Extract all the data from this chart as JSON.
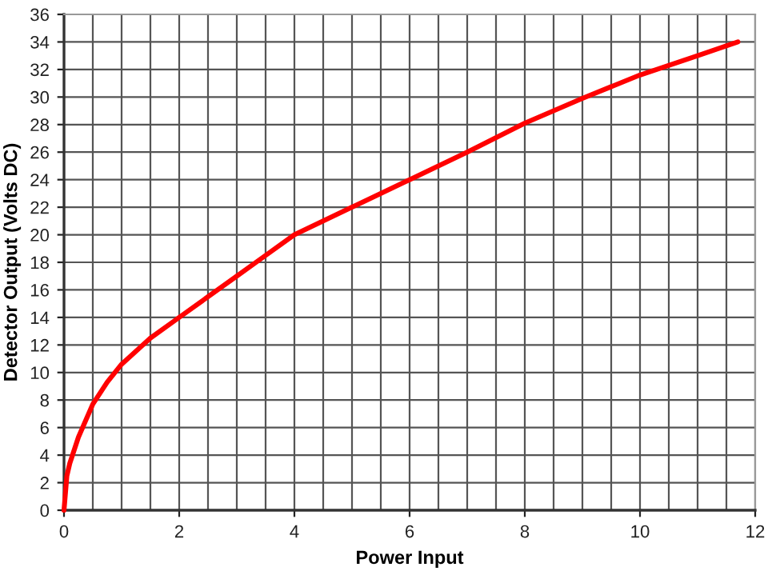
{
  "chart_data": {
    "type": "line",
    "xlabel": "Power Input",
    "ylabel": "Detector Output (Volts DC)",
    "x": [
      0,
      0.05,
      0.1,
      0.25,
      0.5,
      0.75,
      1,
      1.5,
      2,
      2.5,
      3,
      3.5,
      4,
      5,
      6,
      7,
      8,
      9,
      10,
      11,
      11.7
    ],
    "series": [
      {
        "color": "#ff0000",
        "values": [
          0,
          2.5,
          3.4,
          5.3,
          7.7,
          9.3,
          10.6,
          12.5,
          14.0,
          15.5,
          17.0,
          18.5,
          20.0,
          22.0,
          24.0,
          26.0,
          28.1,
          29.9,
          31.6,
          33.0,
          34.0
        ]
      }
    ],
    "xlim": [
      0,
      12
    ],
    "xticks": [
      0,
      {
        "value": 0.5,
        "label": null
      },
      {
        "value": 1,
        "label": null
      },
      {
        "value": 1.5,
        "label": null
      },
      2,
      {
        "value": 2.5,
        "label": null
      },
      {
        "value": 3,
        "label": null
      },
      {
        "value": 3.5,
        "label": null
      },
      4,
      {
        "value": 4.5,
        "label": null
      },
      {
        "value": 5,
        "label": null
      },
      {
        "value": 5.5,
        "label": null
      },
      6,
      {
        "value": 6.5,
        "label": null
      },
      {
        "value": 7,
        "label": null
      },
      {
        "value": 7.5,
        "label": null
      },
      8,
      {
        "value": 8.5,
        "label": null
      },
      {
        "value": 9,
        "label": null
      },
      {
        "value": 9.5,
        "label": null
      },
      10,
      {
        "value": 10.5,
        "label": null
      },
      {
        "value": 11,
        "label": null
      },
      {
        "value": 11.5,
        "label": null
      },
      12
    ],
    "ylim": [
      0,
      36
    ],
    "yticks": [
      0,
      2,
      4,
      6,
      8,
      10,
      12,
      14,
      16,
      18,
      20,
      22,
      24,
      26,
      28,
      30,
      32,
      34,
      36
    ],
    "grid": true,
    "marker": "none",
    "line_style": "solid"
  }
}
